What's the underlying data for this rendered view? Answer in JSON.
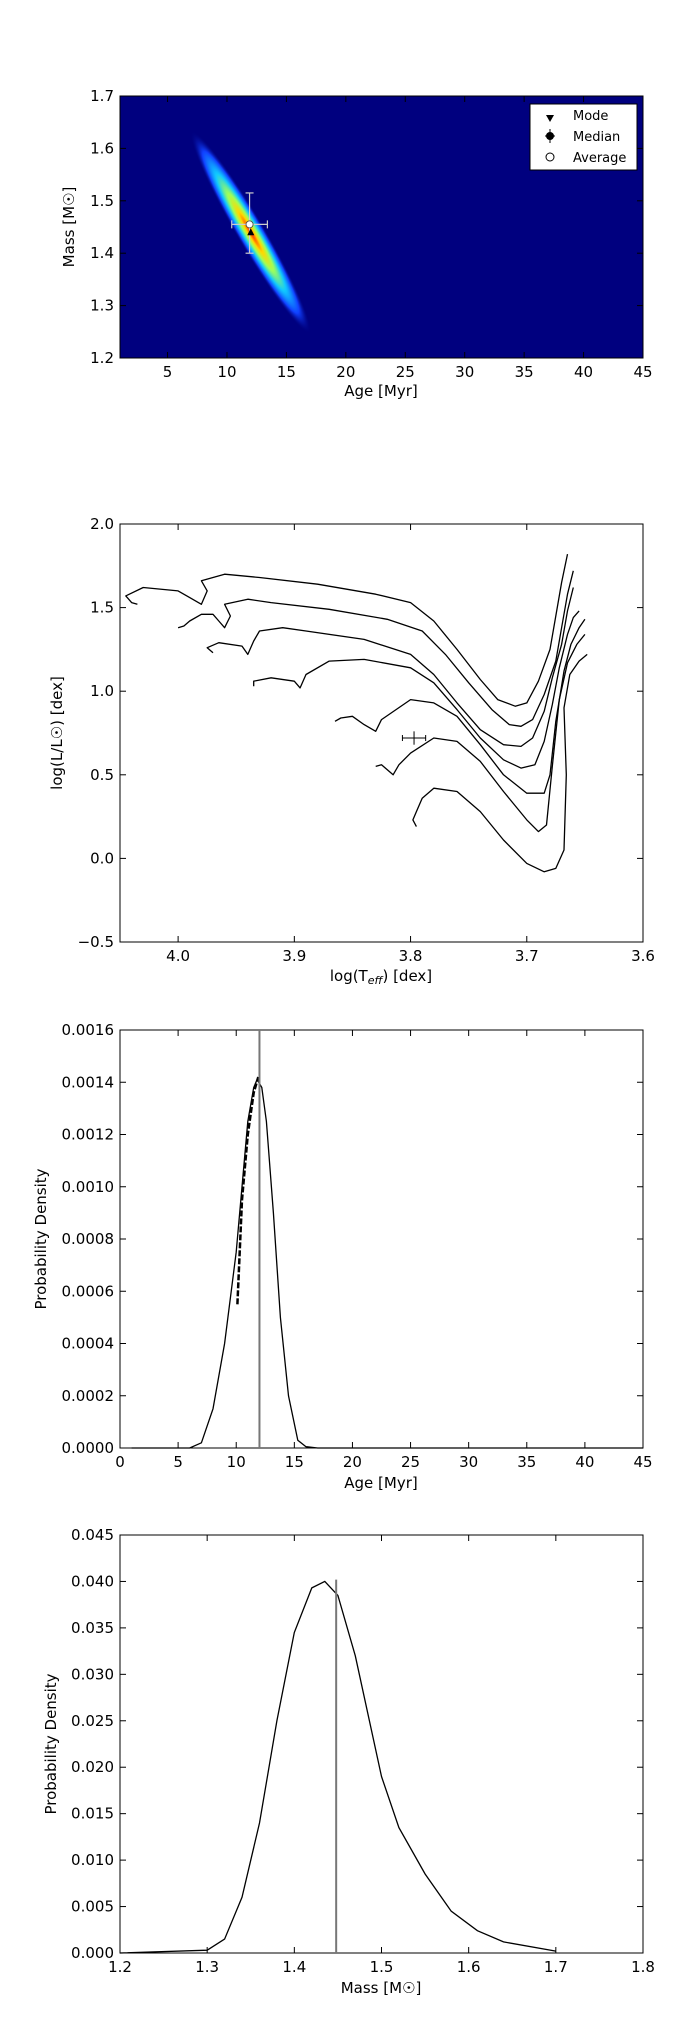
{
  "chart_data": [
    {
      "type": "heatmap",
      "title": "",
      "xlabel": "Age [Myr]",
      "ylabel": "Mass [M☉]",
      "xlim": [
        1,
        45
      ],
      "ylim": [
        1.2,
        1.7
      ],
      "xticks": [
        5,
        10,
        15,
        20,
        25,
        30,
        35,
        40,
        45
      ],
      "yticks": [
        1.2,
        1.3,
        1.4,
        1.5,
        1.6,
        1.7
      ],
      "background_color": "#00007f",
      "ridge": {
        "x": [
          7.0,
          8.5,
          10.0,
          11.5,
          13.0,
          14.5,
          16.0
        ],
        "y": [
          1.65,
          1.59,
          1.52,
          1.46,
          1.4,
          1.35,
          1.3
        ]
      },
      "peak": {
        "x": 12.0,
        "y": 1.44
      },
      "markers": {
        "median": {
          "x": 11.9,
          "y": 1.455,
          "xerr": [
            1.5,
            1.5
          ],
          "yerr": [
            0.055,
            0.06
          ]
        },
        "mode": {
          "x": 12.0,
          "y": 1.44
        },
        "average": {
          "x": 11.9,
          "y": 1.455
        }
      },
      "legend": {
        "placement": "top-right",
        "entries": [
          "Mode",
          "Median",
          "Average"
        ]
      },
      "grid": false
    },
    {
      "type": "line",
      "title": "",
      "xlabel": "log(T_eff) [dex]",
      "ylabel": "log(L/L☉) [dex]",
      "xlim": [
        4.05,
        3.6
      ],
      "ylim": [
        -0.5,
        2.0
      ],
      "xticks": [
        "4.0",
        "3.9",
        "3.8",
        "3.7",
        "3.6"
      ],
      "yticks": [
        "−0.5",
        "0.0",
        "0.5",
        "1.0",
        "1.5",
        "2.0"
      ],
      "grid": false,
      "series": [
        {
          "x": [
            4.035,
            4.04,
            4.045,
            4.03,
            4.0,
            3.99,
            3.98,
            3.975,
            3.98,
            3.96,
            3.93,
            3.88,
            3.83,
            3.8,
            3.78,
            3.76,
            3.74,
            3.725,
            3.71,
            3.7,
            3.69,
            3.68,
            3.675,
            3.67,
            3.665
          ],
          "y": [
            1.52,
            1.53,
            1.57,
            1.62,
            1.6,
            1.56,
            1.52,
            1.6,
            1.66,
            1.7,
            1.68,
            1.64,
            1.58,
            1.53,
            1.42,
            1.25,
            1.07,
            0.95,
            0.91,
            0.93,
            1.06,
            1.25,
            1.45,
            1.65,
            1.82
          ]
        },
        {
          "x": [
            4.0,
            3.995,
            3.99,
            3.98,
            3.97,
            3.965,
            3.96,
            3.955,
            3.96,
            3.94,
            3.92,
            3.87,
            3.82,
            3.79,
            3.77,
            3.75,
            3.73,
            3.715,
            3.705,
            3.695,
            3.685,
            3.675,
            3.67,
            3.665,
            3.66
          ],
          "y": [
            1.38,
            1.39,
            1.42,
            1.46,
            1.46,
            1.42,
            1.38,
            1.45,
            1.52,
            1.55,
            1.53,
            1.49,
            1.43,
            1.36,
            1.22,
            1.05,
            0.89,
            0.8,
            0.79,
            0.83,
            0.98,
            1.18,
            1.38,
            1.58,
            1.72
          ]
        },
        {
          "x": [
            3.97,
            3.975,
            3.965,
            3.945,
            3.94,
            3.935,
            3.93,
            3.91,
            3.89,
            3.84,
            3.8,
            3.78,
            3.76,
            3.74,
            3.72,
            3.705,
            3.695,
            3.685,
            3.678,
            3.67,
            3.665,
            3.66
          ],
          "y": [
            1.23,
            1.26,
            1.29,
            1.27,
            1.22,
            1.3,
            1.36,
            1.38,
            1.36,
            1.31,
            1.22,
            1.1,
            0.93,
            0.77,
            0.68,
            0.67,
            0.72,
            0.88,
            1.08,
            1.28,
            1.48,
            1.62
          ]
        },
        {
          "x": [
            3.935,
            3.935,
            3.92,
            3.9,
            3.895,
            3.89,
            3.87,
            3.84,
            3.8,
            3.78,
            3.76,
            3.74,
            3.72,
            3.705,
            3.693,
            3.685,
            3.678,
            3.672,
            3.665,
            3.66,
            3.655
          ],
          "y": [
            1.03,
            1.06,
            1.08,
            1.06,
            1.02,
            1.1,
            1.18,
            1.19,
            1.14,
            1.05,
            0.89,
            0.72,
            0.59,
            0.54,
            0.56,
            0.7,
            0.92,
            1.14,
            1.34,
            1.44,
            1.48
          ]
        },
        {
          "x": [
            3.865,
            3.86,
            3.85,
            3.84,
            3.83,
            3.825,
            3.8,
            3.78,
            3.76,
            3.74,
            3.72,
            3.7,
            3.685,
            3.68,
            3.675,
            3.668,
            3.662,
            3.655,
            3.65
          ],
          "y": [
            0.82,
            0.84,
            0.85,
            0.8,
            0.76,
            0.83,
            0.95,
            0.93,
            0.85,
            0.68,
            0.5,
            0.39,
            0.39,
            0.5,
            0.82,
            1.12,
            1.28,
            1.38,
            1.43
          ]
        },
        {
          "x": [
            3.83,
            3.825,
            3.82,
            3.815,
            3.81,
            3.8,
            3.78,
            3.76,
            3.74,
            3.72,
            3.7,
            3.69,
            3.683,
            3.678,
            3.672,
            3.665,
            3.657,
            3.65
          ],
          "y": [
            0.55,
            0.56,
            0.53,
            0.5,
            0.56,
            0.63,
            0.72,
            0.7,
            0.58,
            0.4,
            0.23,
            0.16,
            0.2,
            0.55,
            0.95,
            1.17,
            1.28,
            1.34
          ]
        },
        {
          "x": [
            3.795,
            3.798,
            3.795,
            3.79,
            3.78,
            3.76,
            3.74,
            3.72,
            3.7,
            3.685,
            3.675,
            3.668,
            3.666,
            3.668,
            3.663,
            3.655,
            3.648
          ],
          "y": [
            0.19,
            0.23,
            0.28,
            0.36,
            0.42,
            0.4,
            0.28,
            0.11,
            -0.03,
            -0.08,
            -0.06,
            0.05,
            0.5,
            0.9,
            1.1,
            1.18,
            1.22
          ]
        }
      ],
      "point": {
        "x": 3.797,
        "y": 0.72,
        "xerr": 0.01,
        "yerr": 0.04
      }
    },
    {
      "type": "line",
      "title": "",
      "xlabel": "Age [Myr]",
      "ylabel": "Probability Density",
      "xlim": [
        0,
        45
      ],
      "ylim": [
        0,
        0.0016
      ],
      "xticks": [
        "0",
        "5",
        "10",
        "15",
        "20",
        "25",
        "30",
        "35",
        "40",
        "45"
      ],
      "yticks": [
        "0.0000",
        "0.0002",
        "0.0004",
        "0.0006",
        "0.0008",
        "0.0010",
        "0.0012",
        "0.0014",
        "0.0016"
      ],
      "grid": false,
      "series": [
        {
          "x": [
            1,
            6,
            7,
            8,
            9,
            10,
            10.5,
            11,
            11.5,
            11.8,
            12.2,
            12.6,
            13.2,
            13.8,
            14.5,
            15.3,
            16,
            17,
            45
          ],
          "y": [
            0,
            0,
            2e-05,
            0.00015,
            0.0004,
            0.00075,
            0.001,
            0.00125,
            0.00138,
            0.00141,
            0.00138,
            0.00125,
            0.0009,
            0.0005,
            0.0002,
            3e-05,
            5e-06,
            0,
            0
          ]
        },
        {
          "x": [
            10.1,
            10.5,
            11,
            11.5,
            11.9
          ],
          "y": [
            0.00055,
            0.00095,
            0.0012,
            0.00136,
            0.00142
          ],
          "style": "dashed"
        }
      ],
      "vline": 12.0
    },
    {
      "type": "line",
      "title": "",
      "xlabel": "Mass [M☉]",
      "ylabel": "Probability Density",
      "xlim": [
        1.2,
        1.8
      ],
      "ylim": [
        0,
        0.045
      ],
      "xticks": [
        "1.2",
        "1.3",
        "1.4",
        "1.5",
        "1.6",
        "1.7",
        "1.8"
      ],
      "yticks": [
        "0.000",
        "0.005",
        "0.010",
        "0.015",
        "0.020",
        "0.025",
        "0.030",
        "0.035",
        "0.040",
        "0.045"
      ],
      "grid": false,
      "series": [
        {
          "x": [
            1.2,
            1.3,
            1.32,
            1.34,
            1.36,
            1.38,
            1.4,
            1.42,
            1.435,
            1.45,
            1.47,
            1.5,
            1.52,
            1.55,
            1.58,
            1.61,
            1.64,
            1.7
          ],
          "y": [
            0,
            0.0003,
            0.0015,
            0.006,
            0.014,
            0.025,
            0.0345,
            0.0393,
            0.04,
            0.0385,
            0.032,
            0.019,
            0.0135,
            0.0085,
            0.0045,
            0.0024,
            0.0012,
            0.0002
          ]
        }
      ],
      "vline": 1.448
    }
  ]
}
